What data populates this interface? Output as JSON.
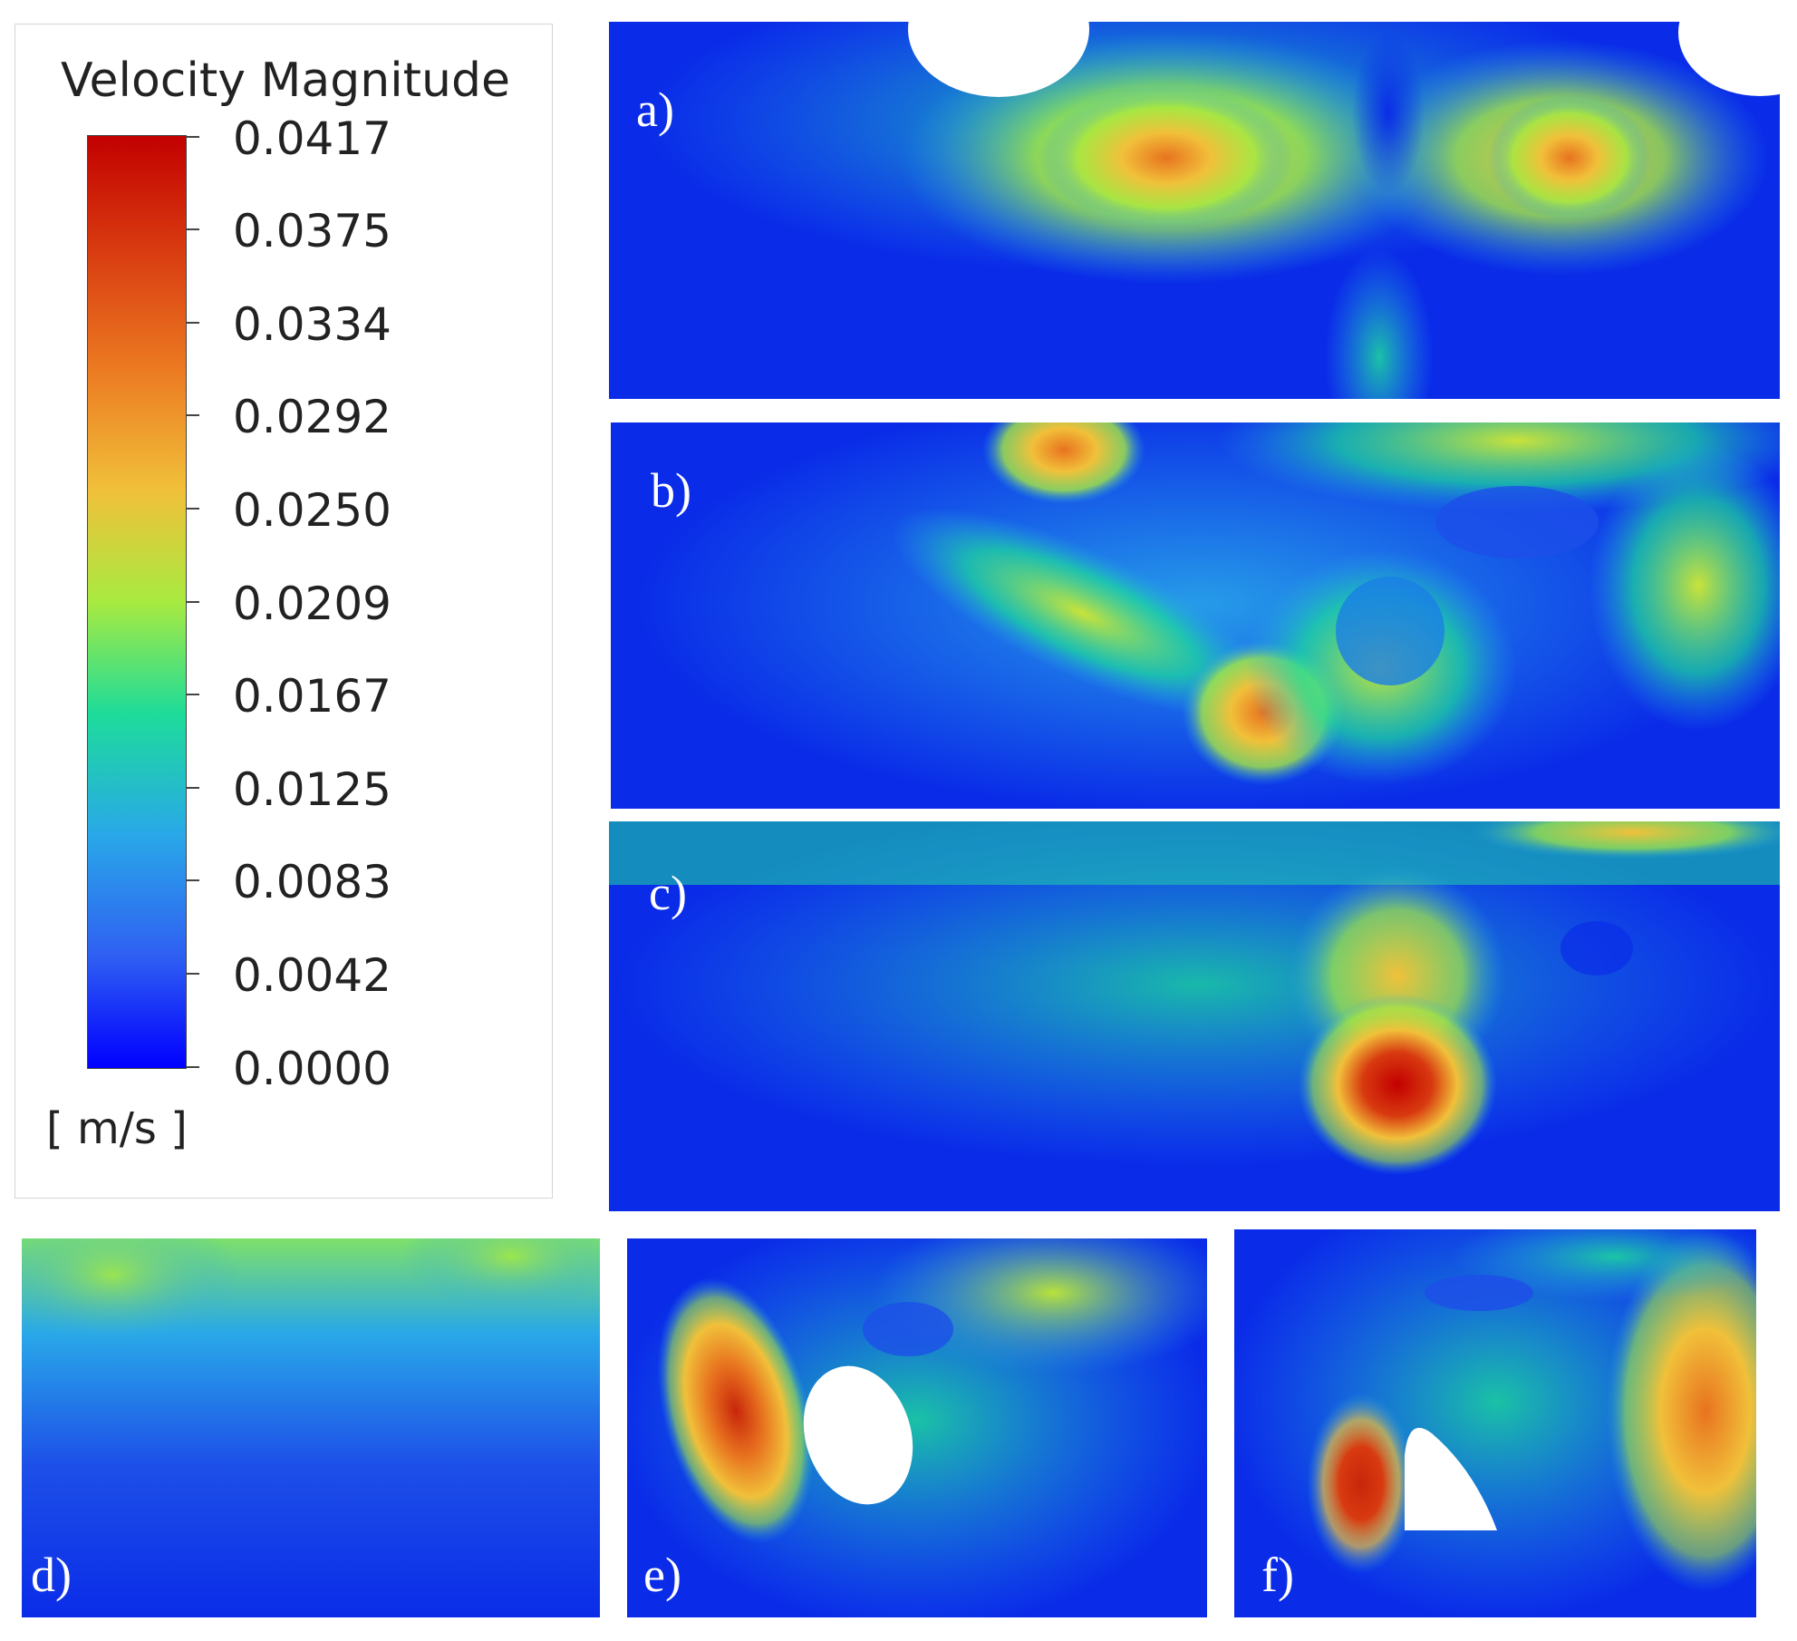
{
  "legend": {
    "title": "Velocity Magnitude",
    "unit": "[ m/s ]",
    "ticks": [
      "0.0417",
      "0.0375",
      "0.0334",
      "0.0292",
      "0.0250",
      "0.0209",
      "0.0167",
      "0.0125",
      "0.0083",
      "0.0042",
      "0.0000"
    ],
    "colormap": [
      "#0000ff",
      "#2f5ff2",
      "#29a8e8",
      "#1ddc9a",
      "#a8ea40",
      "#f1c03a",
      "#ec7a22",
      "#d83a10",
      "#c20000"
    ]
  },
  "panels": [
    {
      "label": "a)"
    },
    {
      "label": "b)"
    },
    {
      "label": "c)"
    },
    {
      "label": "d)"
    },
    {
      "label": "e)"
    },
    {
      "label": "f)"
    }
  ]
}
